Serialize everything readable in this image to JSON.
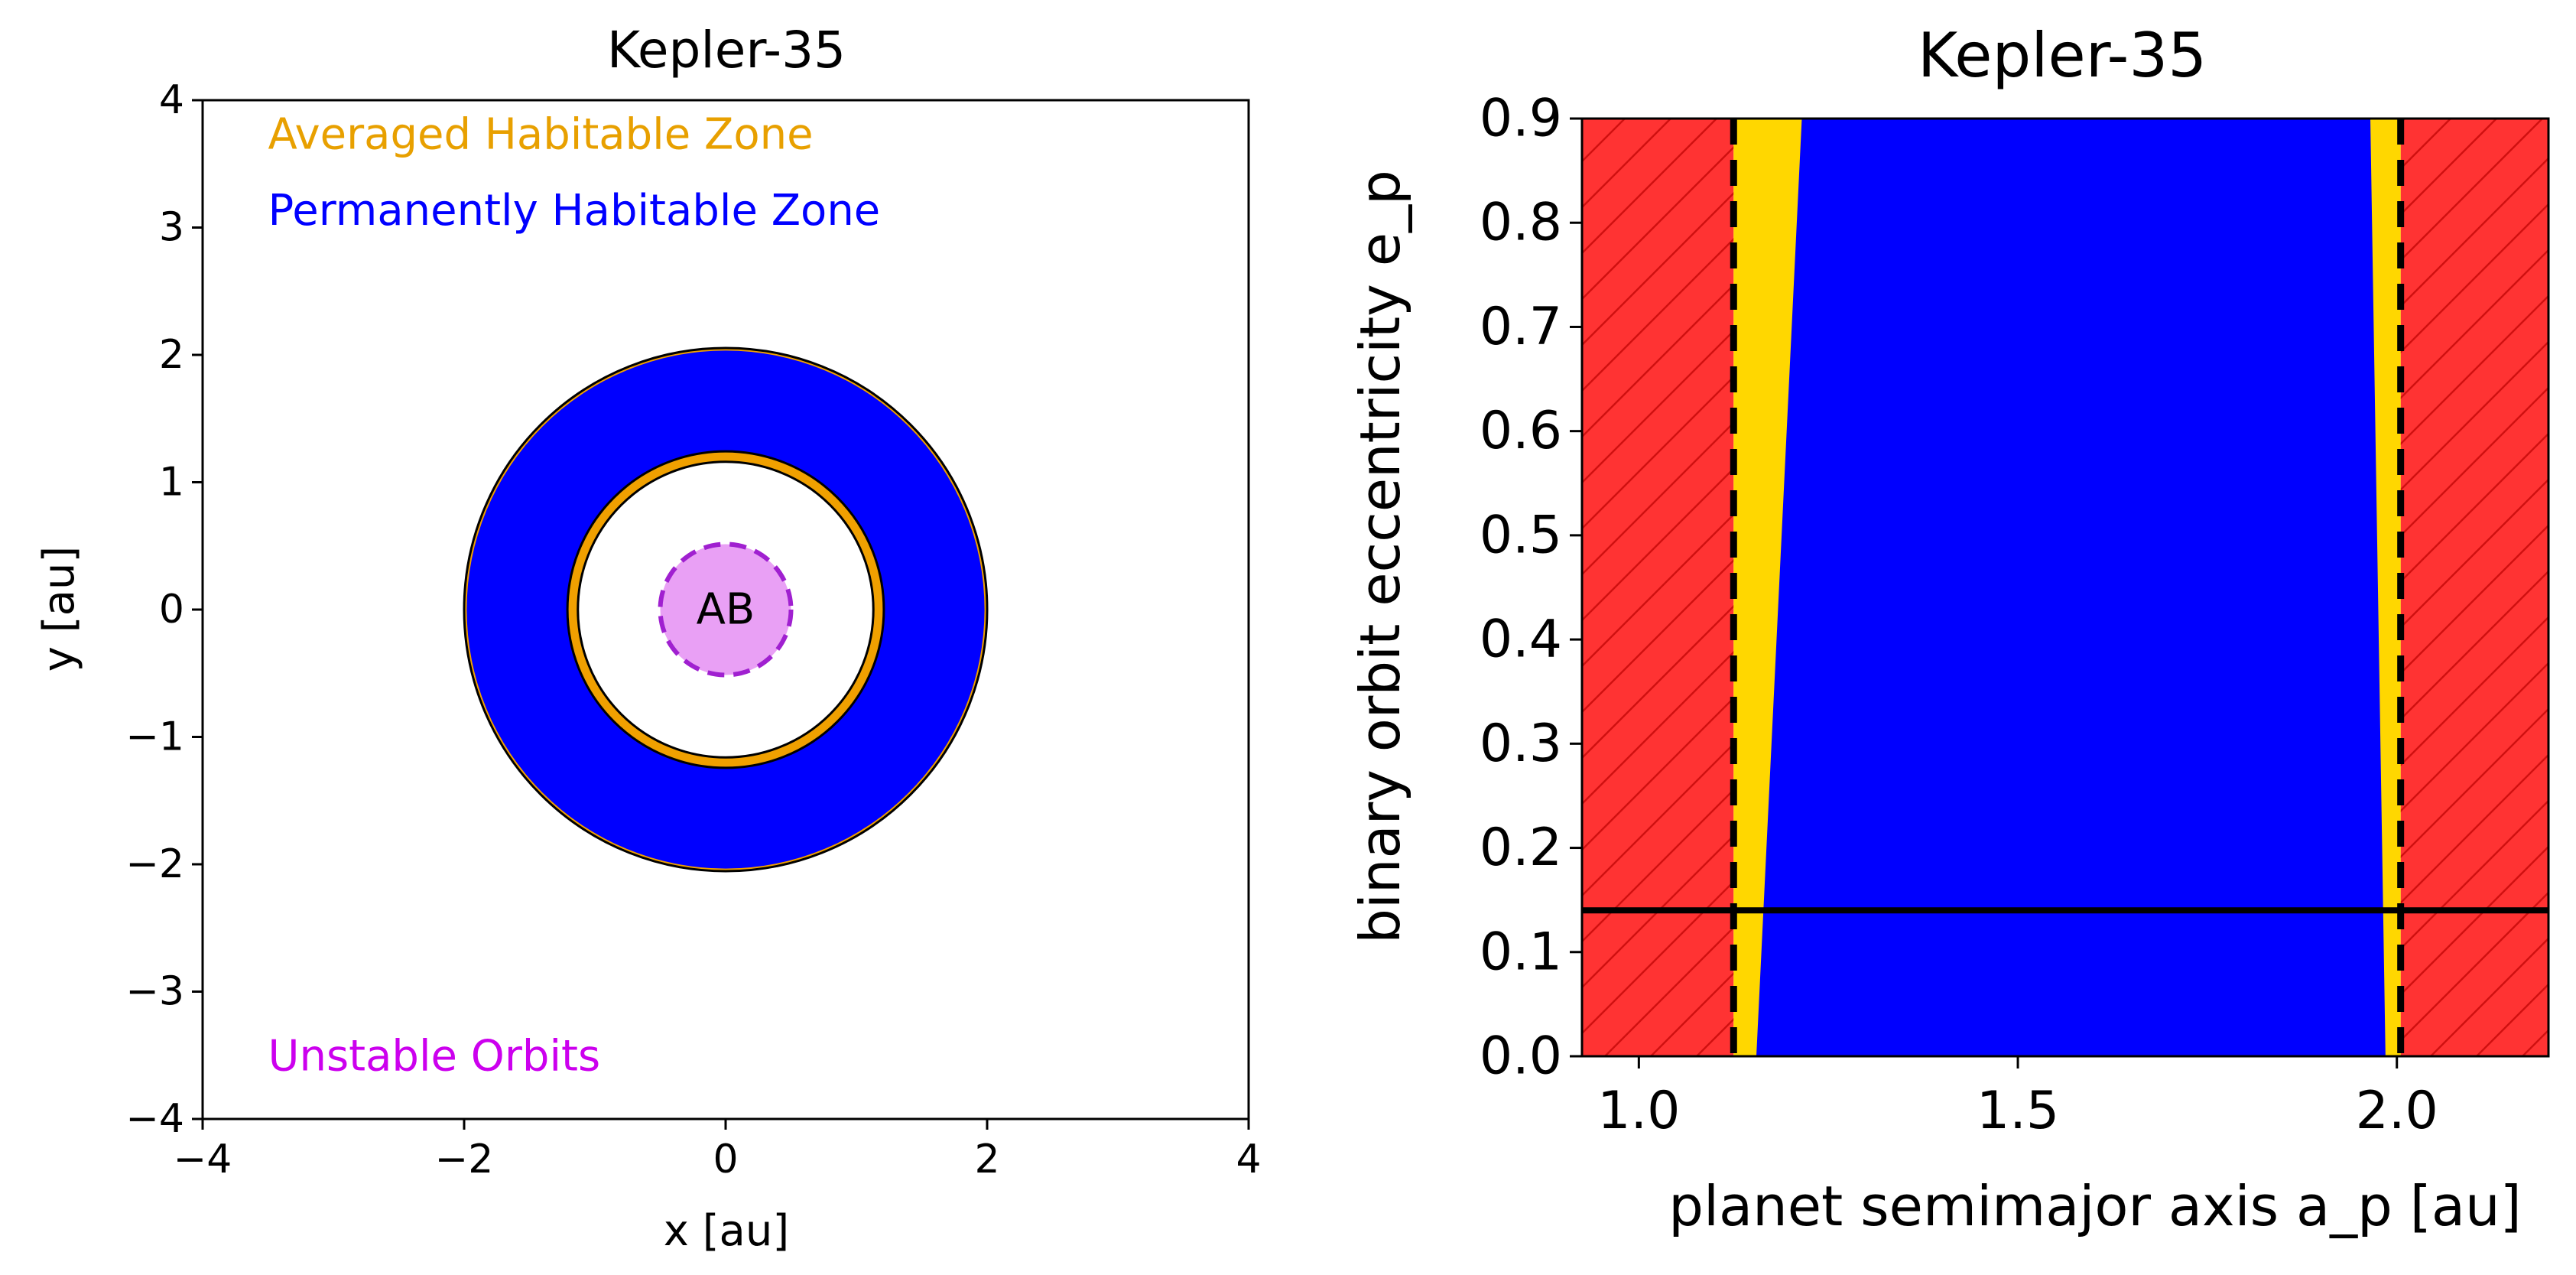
{
  "chart_data": [
    {
      "type": "diagram",
      "title": "Kepler-35",
      "xlabel": "x [au]",
      "ylabel": "y [au]",
      "xlim": [
        -4,
        4
      ],
      "ylim": [
        -4,
        4
      ],
      "xticks": [
        -4,
        -2,
        0,
        2,
        4
      ],
      "yticks": [
        -4,
        -3,
        -2,
        -1,
        0,
        1,
        2,
        3,
        4
      ],
      "xtick_labels": [
        "−4",
        "−2",
        "0",
        "2",
        "4"
      ],
      "ytick_labels": [
        "−4",
        "−3",
        "−2",
        "−1",
        "0",
        "1",
        "2",
        "3",
        "4"
      ],
      "averaged_hz": {
        "inner": 1.13,
        "outer": 2.0
      },
      "permanent_hz": {
        "inner": 1.21,
        "outer": 1.98
      },
      "unstable_radius": 0.5,
      "star_label": "AB",
      "legend": [
        {
          "label": "Averaged Habitable Zone",
          "color": "#e8a000"
        },
        {
          "label": "Permanently Habitable Zone",
          "color": "#0000ff"
        },
        {
          "label": "Unstable Orbits",
          "color": "#cc00ee"
        }
      ],
      "colors": {
        "averaged": "#f0a000",
        "permanent": "#0000ff",
        "unstable_fill": "#e9a0f5",
        "unstable_edge": "#a020d0"
      }
    },
    {
      "type": "area",
      "title": "Kepler-35",
      "xlabel": "planet semimajor axis a_p [au]",
      "ylabel": "binary orbit eccentricity e_p",
      "xlim": [
        0.925,
        2.2
      ],
      "ylim": [
        0.0,
        0.9
      ],
      "xticks": [
        1.0,
        1.5,
        2.0
      ],
      "yticks": [
        0.0,
        0.1,
        0.2,
        0.3,
        0.4,
        0.5,
        0.6,
        0.7,
        0.8,
        0.9
      ],
      "xtick_labels": [
        "1.0",
        "1.5",
        "2.0"
      ],
      "ytick_labels": [
        "0.0",
        "0.1",
        "0.2",
        "0.3",
        "0.4",
        "0.5",
        "0.6",
        "0.7",
        "0.8",
        "0.9"
      ],
      "unstable_regions": [
        [
          0.925,
          1.125
        ],
        [
          2.005,
          2.2
        ]
      ],
      "averaged_hz": [
        1.125,
        2.005
      ],
      "permanent_hz_inner": {
        "e": [
          0.0,
          0.9
        ],
        "a": [
          1.155,
          1.215
        ]
      },
      "permanent_hz_outer": {
        "e": [
          0.0,
          0.9
        ],
        "a": [
          1.985,
          1.965
        ]
      },
      "boundary_lines_dashed": [
        1.125,
        2.005
      ],
      "binary_eccentricity": 0.14,
      "colors": {
        "unstable": "#ff3333",
        "averaged": "#ffd700",
        "permanent": "#0000ff",
        "hatch": "#d01010"
      }
    }
  ]
}
